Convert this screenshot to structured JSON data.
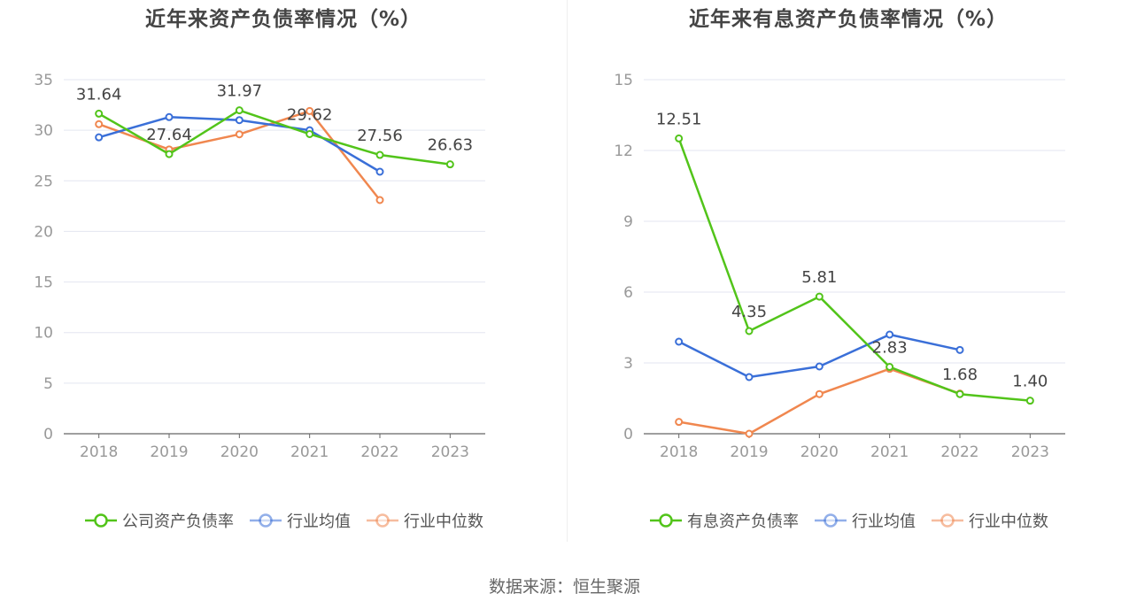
{
  "source": "数据来源：恒生聚源",
  "chart_data": [
    {
      "type": "line",
      "title": "近年来资产负债率情况（%）",
      "x": [
        "2018",
        "2019",
        "2020",
        "2021",
        "2022",
        "2023"
      ],
      "yticks": [
        "0",
        "5",
        "10",
        "15",
        "20",
        "25",
        "30",
        "35"
      ],
      "ylim": [
        0,
        35
      ],
      "grid": true,
      "legend_position": "bottom",
      "series": [
        {
          "name": "公司资产负债率",
          "color": "#52c41a",
          "values": [
            31.64,
            27.64,
            31.97,
            29.62,
            27.56,
            26.63
          ],
          "labels": [
            "31.64",
            "27.64",
            "31.97",
            "29.62",
            "27.56",
            "26.63"
          ]
        },
        {
          "name": "行业均值",
          "color": "#3a6fd8",
          "values": [
            29.3,
            31.3,
            31.0,
            30.0,
            25.9,
            null
          ]
        },
        {
          "name": "行业中位数",
          "color": "#f0874f",
          "values": [
            30.6,
            28.1,
            29.6,
            31.9,
            23.1,
            null
          ]
        }
      ]
    },
    {
      "type": "line",
      "title": "近年来有息资产负债率情况（%）",
      "x": [
        "2018",
        "2019",
        "2020",
        "2021",
        "2022",
        "2023"
      ],
      "yticks": [
        "0",
        "3",
        "6",
        "9",
        "12",
        "15"
      ],
      "ylim": [
        0,
        15
      ],
      "grid": true,
      "legend_position": "bottom",
      "series": [
        {
          "name": "有息资产负债率",
          "color": "#52c41a",
          "values": [
            12.51,
            4.35,
            5.81,
            2.83,
            1.68,
            1.4
          ],
          "labels": [
            "12.51",
            "4.35",
            "5.81",
            "2.83",
            "1.68",
            "1.40"
          ]
        },
        {
          "name": "行业均值",
          "color": "#3a6fd8",
          "values": [
            3.9,
            2.4,
            2.85,
            4.2,
            3.55,
            null
          ]
        },
        {
          "name": "行业中位数",
          "color": "#f0874f",
          "values": [
            0.5,
            0.0,
            1.68,
            2.75,
            1.7,
            null
          ]
        }
      ]
    }
  ]
}
